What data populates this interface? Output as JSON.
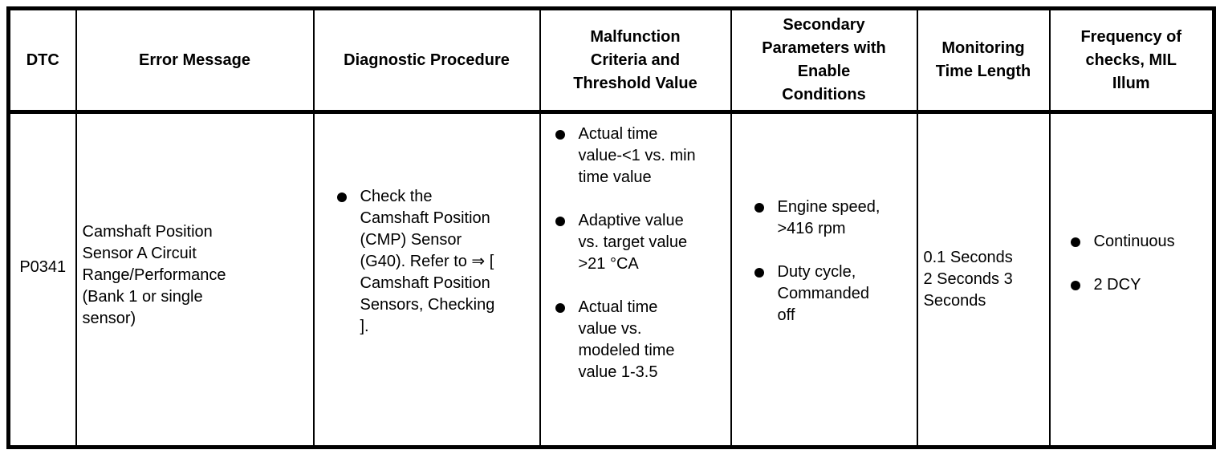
{
  "page": {
    "background_color": "#ffffff",
    "border_color": "#000000",
    "text_color": "#000000"
  },
  "table": {
    "headers": [
      "DTC",
      "Error Message",
      "Diagnostic Procedure",
      "Malfunction Criteria and Threshold Value",
      "Secondary Parameters with Enable Conditions",
      "Monitoring Time Length",
      "Frequency of checks, MIL Illum"
    ],
    "row": {
      "dtc": "P0341",
      "error_message": "Camshaft Position Sensor A Circuit Range/Performance (Bank 1 or single sensor)",
      "diagnostic_procedure": [
        "Check the Camshaft Position (CMP) Sensor (G40). Refer to ⇒ [ Camshaft Position Sensors, Checking ]."
      ],
      "malfunction_criteria": [
        "Actual time value-<1 vs. min time value",
        "Adaptive value vs. target value >21 °CA",
        "Actual time value vs. modeled time value 1-3.5"
      ],
      "secondary_parameters": [
        "Engine speed, >416 rpm",
        "Duty cycle, Commanded off"
      ],
      "monitoring_time_length": "0.1 Seconds 2 Seconds 3 Seconds",
      "frequency_of_checks": [
        "Continuous",
        "2 DCY"
      ]
    }
  }
}
